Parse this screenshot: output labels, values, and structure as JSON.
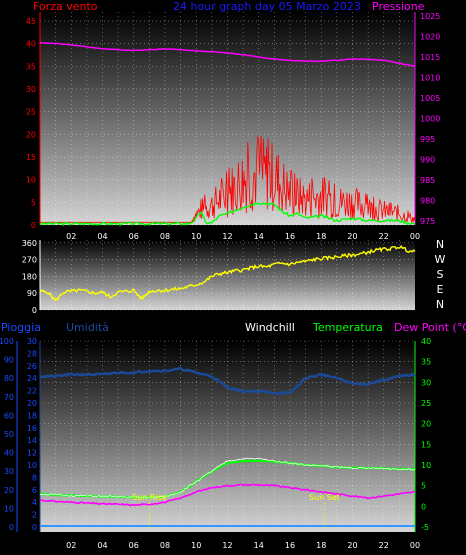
{
  "header": {
    "wind_label": "Forza vento",
    "title": "24 hour graph day  05 Marzo 2023",
    "pressure_label": "Pressione"
  },
  "legend2": {
    "rain": "Pioggia",
    "humidity": "Umidità",
    "windchill": "Windchill",
    "temperature": "Temperatura",
    "dewpoint": "Dew Point (°C)"
  },
  "compass": [
    "N",
    "W",
    "S",
    "E",
    "N"
  ],
  "annotations": {
    "sunrise": "Sun Rise",
    "sunset": "Sun Set"
  },
  "colors": {
    "wind": "#ff0000",
    "gust": "#00ff00",
    "pressure": "#ff00ff",
    "direction": "#ffff00",
    "humidity": "#1a4a99",
    "temperature": "#00ff00",
    "windchill": "#ffffff",
    "dewpoint": "#ff00ff",
    "rain": "#3399ff",
    "label_blue": "#1a4aff",
    "title_blue": "#1a1aff"
  },
  "chart_data": [
    {
      "type": "line",
      "name": "wind-pressure",
      "x_ticks": [
        "02",
        "04",
        "06",
        "08",
        "10",
        "12",
        "14",
        "16",
        "18",
        "20",
        "22",
        "00"
      ],
      "y_left_ticks": [
        "0",
        "5",
        "10",
        "15",
        "20",
        "25",
        "30",
        "35",
        "40",
        "45"
      ],
      "y_left_lim": [
        0,
        47
      ],
      "y_right_ticks": [
        "975",
        "980",
        "985",
        "990",
        "995",
        "1000",
        "1005",
        "1010",
        "1015",
        "1020",
        "1025"
      ],
      "y_right_lim": [
        974,
        1026
      ],
      "x_hours": [
        0,
        1,
        2,
        3,
        4,
        5,
        6,
        7,
        8,
        9,
        10,
        11,
        12,
        13,
        14,
        15,
        16,
        17,
        18,
        19,
        20,
        21,
        22,
        23,
        24
      ],
      "pressure": [
        1018.5,
        1018.3,
        1018,
        1017.5,
        1017,
        1016.8,
        1016.6,
        1016.8,
        1017,
        1016.8,
        1016.5,
        1016.3,
        1016,
        1015.6,
        1015,
        1014.5,
        1014.2,
        1014,
        1014,
        1014.2,
        1014.5,
        1014.5,
        1014.2,
        1013.5,
        1012.8
      ],
      "gust_x": [
        0,
        2,
        4,
        6,
        8,
        9.5,
        9.9,
        10.3,
        10.6,
        11,
        11.5,
        12,
        13,
        14,
        15,
        15.5,
        16,
        16.5,
        17,
        18,
        19,
        20,
        21,
        22,
        23,
        23.5,
        24
      ],
      "gust": [
        0.3,
        0.3,
        0.3,
        0.3,
        0.3,
        0.3,
        1,
        3,
        0.5,
        0.5,
        2,
        2.5,
        4,
        5,
        4.5,
        3,
        2,
        2.5,
        1.5,
        2,
        1,
        1.5,
        1,
        1,
        1,
        0.5,
        0.3
      ],
      "wind_envelope_x": [
        0,
        9.7,
        9.8,
        10.5,
        11,
        12,
        13,
        14,
        15,
        16,
        17,
        18,
        19,
        20,
        21,
        22,
        23,
        24
      ],
      "wind_envelope": [
        0.5,
        0.5,
        3,
        6,
        7,
        11,
        16,
        18,
        17,
        11,
        9,
        10,
        8,
        8,
        6,
        5,
        4,
        2
      ]
    },
    {
      "type": "line",
      "name": "wind-direction",
      "x_ticks": [
        "02",
        "04",
        "06",
        "08",
        "10",
        "12",
        "14",
        "16",
        "18",
        "20",
        "22",
        "00"
      ],
      "y_ticks": [
        "0",
        "90",
        "180",
        "270",
        "360"
      ],
      "y_lim": [
        0,
        375
      ],
      "x_hours": [
        0,
        0.5,
        1,
        1.5,
        2,
        2.5,
        3,
        3.5,
        4,
        4.5,
        5,
        5.5,
        6,
        6.5,
        7,
        7.5,
        8,
        8.5,
        9,
        9.5,
        10,
        10.5,
        11,
        11.5,
        12,
        12.5,
        13,
        13.5,
        14,
        14.5,
        15,
        15.5,
        16,
        16.5,
        17,
        17.5,
        18,
        18.5,
        19,
        19.5,
        20,
        20.5,
        21,
        21.5,
        22,
        22.5,
        23,
        23.5,
        24
      ],
      "direction": [
        100,
        95,
        50,
        95,
        100,
        105,
        100,
        90,
        95,
        70,
        95,
        100,
        105,
        60,
        100,
        105,
        105,
        110,
        115,
        125,
        135,
        150,
        180,
        195,
        200,
        210,
        215,
        225,
        235,
        230,
        245,
        250,
        245,
        255,
        260,
        270,
        275,
        280,
        285,
        290,
        295,
        300,
        310,
        320,
        325,
        330,
        340,
        320,
        310
      ]
    },
    {
      "type": "line",
      "name": "temp-humidity-rain",
      "x_ticks": [
        "02",
        "04",
        "06",
        "08",
        "10",
        "12",
        "14",
        "16",
        "18",
        "20",
        "22",
        "00"
      ],
      "y_rain_ticks": [
        "0",
        "10",
        "20",
        "30",
        "40",
        "50",
        "60",
        "70",
        "80",
        "90",
        "100"
      ],
      "y_humidity_ticks": [
        "0",
        "2",
        "4",
        "6",
        "8",
        "10",
        "12",
        "14",
        "16",
        "18",
        "20",
        "22",
        "24",
        "26",
        "28",
        "30"
      ],
      "y_temp_ticks": [
        "-5",
        "0",
        "5",
        "10",
        "15",
        "20",
        "25",
        "30",
        "35",
        "40"
      ],
      "temp_lim": [
        -5,
        40
      ],
      "humidity_lim": [
        0,
        100
      ],
      "x_hours": [
        0,
        1,
        2,
        3,
        4,
        5,
        6,
        7,
        8,
        9,
        10,
        11,
        12,
        13,
        14,
        15,
        16,
        17,
        18,
        19,
        20,
        21,
        22,
        23,
        24
      ],
      "humidity": [
        81,
        81,
        82,
        82,
        82,
        83,
        83,
        84,
        84,
        85,
        83,
        81,
        75,
        73,
        73,
        72,
        72,
        80,
        82,
        80,
        77,
        77,
        79,
        81,
        82
      ],
      "temperature": [
        3,
        2.8,
        2.6,
        2.5,
        2.4,
        2.3,
        2.2,
        2.2,
        2.3,
        3.5,
        6,
        8.5,
        10.5,
        11,
        11,
        10.8,
        10.5,
        10,
        9.8,
        9.5,
        9.3,
        9.2,
        9.2,
        9,
        9
      ],
      "windchill": [
        3,
        2.8,
        2.6,
        2.5,
        2.4,
        2.3,
        2.2,
        2.2,
        2.3,
        3.5,
        6,
        8.5,
        11,
        11.5,
        11.5,
        11,
        10.5,
        10,
        9.8,
        9.5,
        9.3,
        9.2,
        9.2,
        9,
        9
      ],
      "dewpoint": [
        1.5,
        1.2,
        1,
        0.8,
        0.6,
        0.5,
        0.3,
        0.5,
        1,
        2,
        3.5,
        4.5,
        5,
        5.2,
        5.2,
        5,
        4.5,
        4,
        3.5,
        3,
        2.5,
        2,
        2.5,
        3,
        3.5
      ],
      "rain_mm": 0,
      "sunrise_hour": 7,
      "sunset_hour": 18.2
    }
  ]
}
